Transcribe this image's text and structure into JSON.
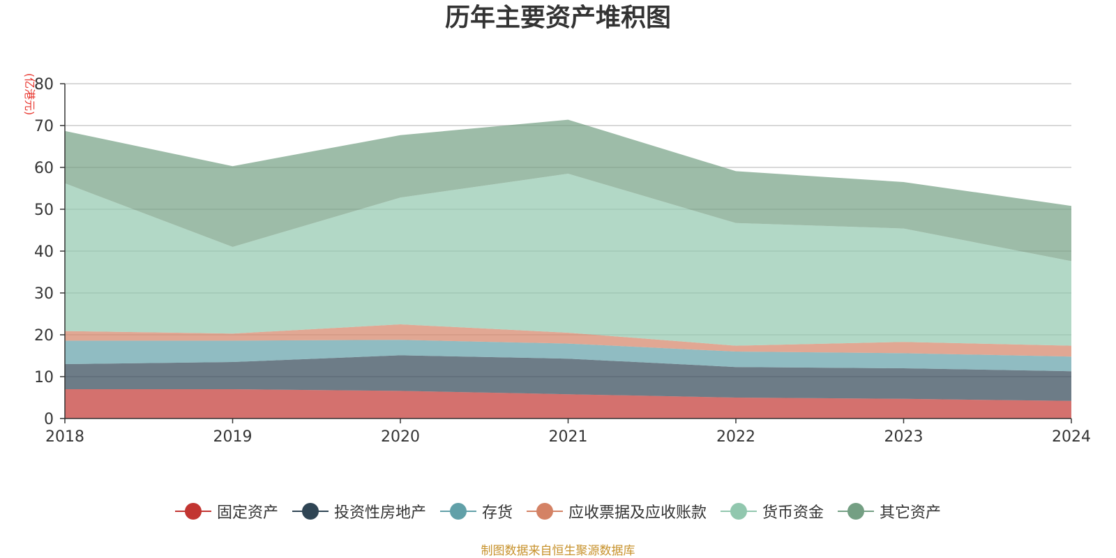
{
  "chart_data": {
    "type": "area",
    "stacked": true,
    "title": "历年主要资产堆积图",
    "ylabel": "(亿港元)",
    "xlabel": "",
    "categories": [
      "2018",
      "2019",
      "2020",
      "2021",
      "2022",
      "2023",
      "2024"
    ],
    "ylim": [
      0,
      80
    ],
    "yticks": [
      0,
      10,
      20,
      30,
      40,
      50,
      60,
      70,
      80
    ],
    "grid": true,
    "legend_position": "bottom",
    "series": [
      {
        "name": "固定资产",
        "color": "#c23531",
        "values": [
          7.0,
          7.0,
          6.6,
          5.8,
          5.0,
          4.7,
          4.2
        ]
      },
      {
        "name": "投资性房地产",
        "color": "#2f4554",
        "values": [
          6.0,
          6.5,
          8.5,
          8.5,
          7.3,
          7.3,
          7.1
        ]
      },
      {
        "name": "存货",
        "color": "#61a0a8",
        "values": [
          5.6,
          5.1,
          3.7,
          3.6,
          3.7,
          3.6,
          3.5
        ]
      },
      {
        "name": "应收票据及应收账款",
        "color": "#d48265",
        "values": [
          2.3,
          1.7,
          3.7,
          2.6,
          1.4,
          2.7,
          2.6
        ]
      },
      {
        "name": "货币资金",
        "color": "#91c7ae",
        "values": [
          35.3,
          20.7,
          30.3,
          38.0,
          29.3,
          27.1,
          20.2
        ]
      },
      {
        "name": "其它资产",
        "color": "#749f83",
        "values": [
          12.5,
          19.3,
          14.9,
          12.9,
          12.4,
          11.1,
          13.2
        ]
      }
    ]
  },
  "source_note": "制图数据来自恒生聚源数据库"
}
